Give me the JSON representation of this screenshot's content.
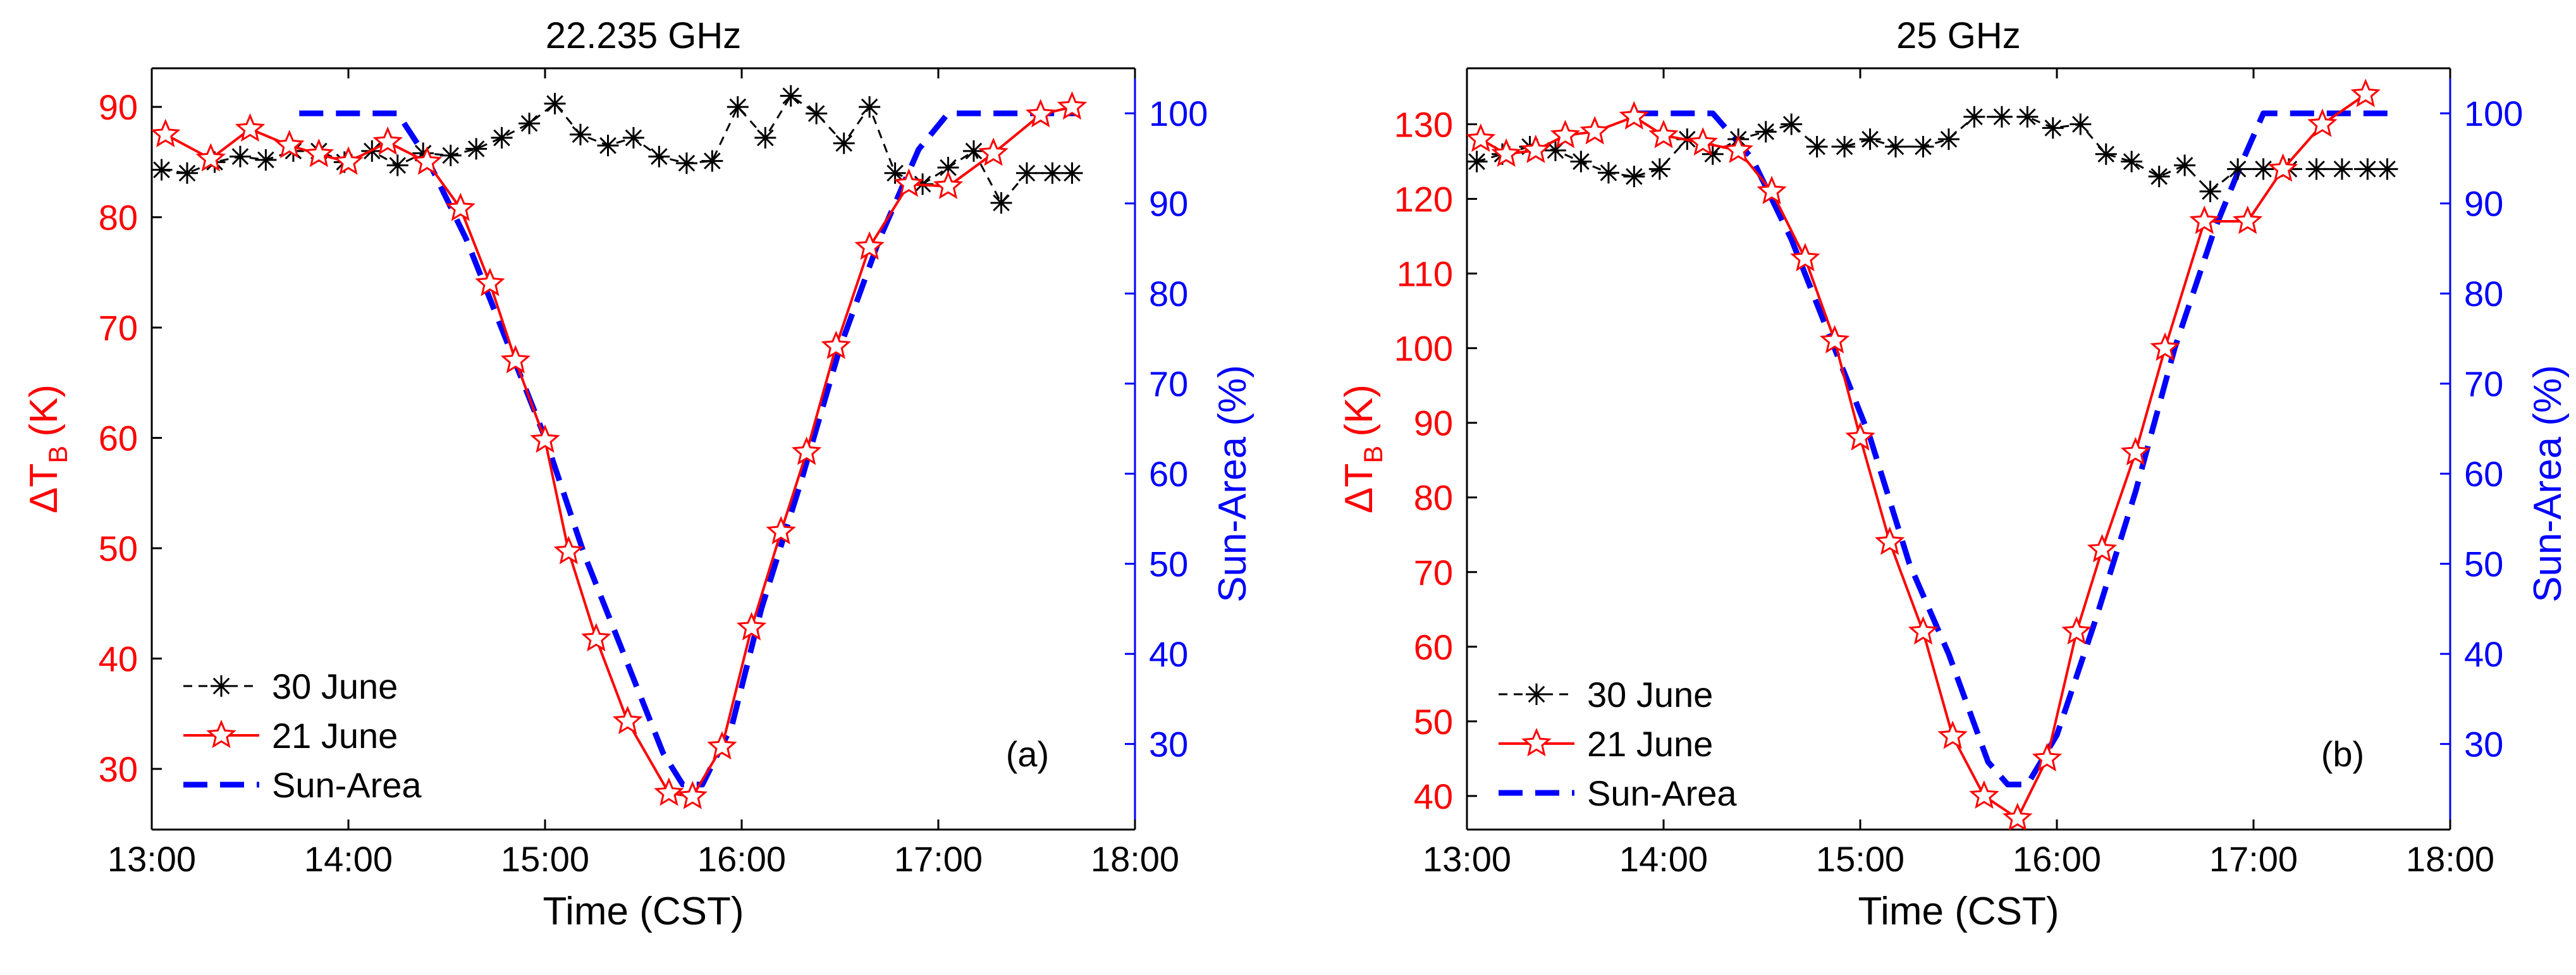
{
  "chart_data": [
    {
      "type": "line",
      "title": "22.235 GHz",
      "panel_label": "(a)",
      "xlabel": "Time (CST)",
      "ylabel_main": "ΔT",
      "ylabel_sub": "B",
      "ylabel_unit": "(K)",
      "y2label": "Sun-Area (%)",
      "xlim": [
        13.0,
        18.0
      ],
      "ylim": [
        24.5,
        93.5
      ],
      "y2lim": [
        20.5,
        105
      ],
      "x_ticks": [
        13,
        14,
        15,
        16,
        17,
        18
      ],
      "x_tick_labels": [
        "13:00",
        "14:00",
        "15:00",
        "16:00",
        "17:00",
        "18:00"
      ],
      "y_ticks": [
        30,
        40,
        50,
        60,
        70,
        80,
        90
      ],
      "y_tick_labels": [
        "30",
        "40",
        "50",
        "60",
        "70",
        "80",
        "90"
      ],
      "y2_ticks": [
        30,
        40,
        50,
        60,
        70,
        80,
        90,
        100
      ],
      "y2_tick_labels": [
        "30",
        "40",
        "50",
        "60",
        "70",
        "80",
        "90",
        "100"
      ],
      "legend": [
        "30 June",
        "21 June",
        "Sun-Area"
      ],
      "series": [
        {
          "name": "30 June",
          "axis": "left",
          "color": "#000000",
          "style": "dashed",
          "marker": "asterisk",
          "x": [
            13.05,
            13.18,
            13.32,
            13.45,
            13.58,
            13.72,
            13.85,
            13.98,
            14.12,
            14.25,
            14.38,
            14.52,
            14.65,
            14.78,
            14.92,
            15.05,
            15.18,
            15.32,
            15.45,
            15.58,
            15.72,
            15.85,
            15.98,
            16.12,
            16.25,
            16.38,
            16.52,
            16.65,
            16.78,
            16.92,
            17.05,
            17.18,
            17.32,
            17.45,
            17.58,
            17.68
          ],
          "values": [
            84.3,
            84.0,
            85.0,
            85.5,
            85.2,
            86.0,
            86.0,
            85.0,
            86.0,
            84.7,
            85.8,
            85.6,
            86.2,
            87.2,
            88.5,
            90.3,
            87.5,
            86.5,
            87.2,
            85.5,
            84.9,
            85.1,
            90.0,
            87.2,
            91.0,
            89.4,
            86.7,
            90.0,
            84.0,
            83.0,
            84.5,
            86.0,
            81.3,
            84.0,
            84.0,
            84.0
          ]
        },
        {
          "name": "21 June",
          "axis": "left",
          "color": "#ff0000",
          "style": "solid",
          "marker": "star",
          "x": [
            13.07,
            13.3,
            13.5,
            13.7,
            13.85,
            14.0,
            14.2,
            14.4,
            14.57,
            14.72,
            14.85,
            15.0,
            15.12,
            15.26,
            15.42,
            15.63,
            15.75,
            15.9,
            16.05,
            16.2,
            16.33,
            16.48,
            16.65,
            16.85,
            17.05,
            17.28,
            17.52,
            17.68
          ],
          "values": [
            87.5,
            85.3,
            88.0,
            86.5,
            85.7,
            85.0,
            86.8,
            85.0,
            80.8,
            74.0,
            67.0,
            59.8,
            49.7,
            41.8,
            34.3,
            27.8,
            27.5,
            32.0,
            42.8,
            51.5,
            58.7,
            68.3,
            77.3,
            83.0,
            82.8,
            85.8,
            89.3,
            90.0
          ]
        },
        {
          "name": "Sun-Area",
          "axis": "right",
          "color": "#0000ff",
          "style": "dashed",
          "marker": "none",
          "x": [
            13.75,
            14.25,
            14.4,
            14.6,
            14.8,
            15.0,
            15.2,
            15.4,
            15.6,
            15.7,
            15.8,
            15.95,
            16.1,
            16.3,
            16.5,
            16.7,
            16.9,
            17.05,
            17.3,
            17.7
          ],
          "values": [
            100,
            100,
            95,
            86,
            75,
            64,
            51,
            40,
            29,
            25.5,
            25.5,
            32,
            45,
            59,
            74,
            86,
            96,
            100,
            100,
            100
          ]
        }
      ]
    },
    {
      "type": "line",
      "title": "25 GHz",
      "panel_label": "(b)",
      "xlabel": "Time (CST)",
      "ylabel_main": "ΔT",
      "ylabel_sub": "B",
      "ylabel_unit": "(K)",
      "y2label": "Sun-Area (%)",
      "xlim": [
        13.0,
        18.0
      ],
      "ylim": [
        35.5,
        137.5
      ],
      "y2lim": [
        20.5,
        105
      ],
      "x_ticks": [
        13,
        14,
        15,
        16,
        17,
        18
      ],
      "x_tick_labels": [
        "13:00",
        "14:00",
        "15:00",
        "16:00",
        "17:00",
        "18:00"
      ],
      "y_ticks": [
        40,
        50,
        60,
        70,
        80,
        90,
        100,
        110,
        120,
        130
      ],
      "y_tick_labels": [
        "40",
        "50",
        "60",
        "70",
        "80",
        "90",
        "100",
        "110",
        "120",
        "130"
      ],
      "y2_ticks": [
        30,
        40,
        50,
        60,
        70,
        80,
        90,
        100
      ],
      "y2_tick_labels": [
        "30",
        "40",
        "50",
        "60",
        "70",
        "80",
        "90",
        "100"
      ],
      "legend": [
        "30 June",
        "21 June",
        "Sun-Area"
      ],
      "series": [
        {
          "name": "30 June",
          "axis": "left",
          "color": "#000000",
          "style": "dashed",
          "marker": "asterisk",
          "x": [
            13.05,
            13.18,
            13.32,
            13.45,
            13.58,
            13.72,
            13.85,
            13.98,
            14.12,
            14.25,
            14.38,
            14.52,
            14.65,
            14.78,
            14.92,
            15.05,
            15.18,
            15.32,
            15.45,
            15.58,
            15.72,
            15.85,
            15.98,
            16.12,
            16.25,
            16.38,
            16.52,
            16.65,
            16.78,
            16.92,
            17.05,
            17.18,
            17.32,
            17.45,
            17.58,
            17.68
          ],
          "values": [
            125,
            126,
            127,
            126.5,
            125,
            123.5,
            123,
            124,
            128,
            126,
            128,
            129,
            130,
            127,
            127,
            128,
            127,
            127,
            128,
            131,
            131,
            131,
            129.5,
            130,
            126,
            125,
            123,
            124.5,
            121,
            124,
            124,
            124,
            124,
            124,
            124,
            124
          ]
        },
        {
          "name": "21 June",
          "axis": "left",
          "color": "#ff0000",
          "style": "solid",
          "marker": "star",
          "x": [
            13.07,
            13.2,
            13.35,
            13.5,
            13.65,
            13.85,
            14.0,
            14.2,
            14.38,
            14.55,
            14.72,
            14.87,
            15.0,
            15.15,
            15.32,
            15.47,
            15.63,
            15.8,
            15.95,
            16.1,
            16.23,
            16.4,
            16.55,
            16.75,
            16.97,
            17.15,
            17.35,
            17.57
          ],
          "values": [
            128,
            126,
            126.5,
            128.5,
            129,
            131,
            128.5,
            127.5,
            126.5,
            121,
            112,
            101,
            88,
            74,
            62,
            48,
            40,
            37,
            45,
            62,
            73,
            86,
            100,
            117,
            117,
            124,
            130,
            134
          ]
        },
        {
          "name": "Sun-Area",
          "axis": "right",
          "color": "#0000ff",
          "style": "dashed",
          "marker": "none",
          "x": [
            13.85,
            14.25,
            14.45,
            14.65,
            14.85,
            15.05,
            15.25,
            15.45,
            15.65,
            15.75,
            15.85,
            16.0,
            16.2,
            16.4,
            16.6,
            16.8,
            16.95,
            17.05,
            17.3,
            17.7
          ],
          "values": [
            100,
            100,
            95,
            86,
            75,
            64,
            50,
            40,
            28,
            25.5,
            25.5,
            31,
            44,
            58,
            74,
            87,
            95,
            100,
            100,
            100
          ]
        }
      ]
    }
  ]
}
